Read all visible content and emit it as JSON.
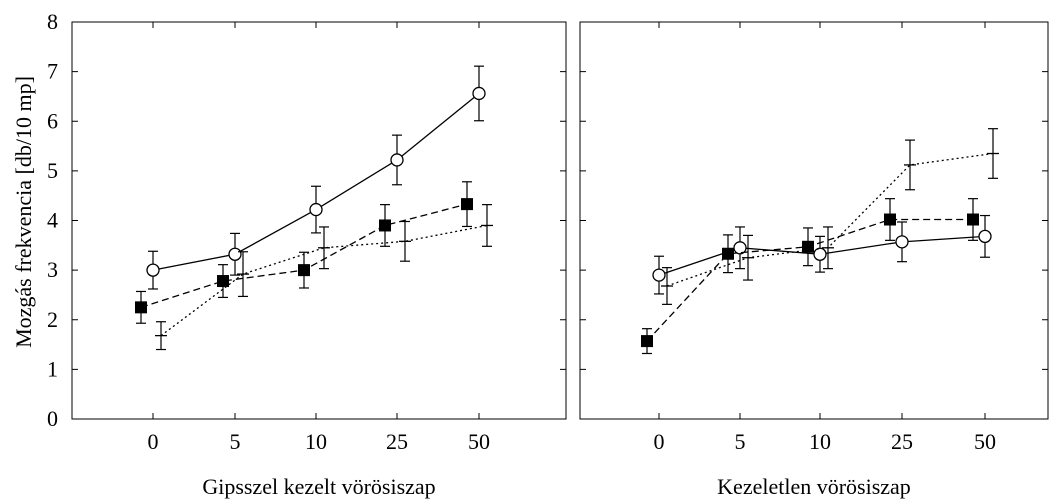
{
  "y_axis_label": "Mozgás frekvencia [db/10 mp]",
  "chart_data": [
    {
      "type": "line",
      "xlabel": "Gipsszel kezelt vörösiszap",
      "ylabel": "Mozgás frekvencia [db/10 mp]",
      "categories": [
        "0",
        "5",
        "10",
        "25",
        "50"
      ],
      "ylim": [
        0,
        8
      ],
      "yticks": [
        "0",
        "1",
        "2",
        "3",
        "4",
        "5",
        "6",
        "7",
        "8"
      ],
      "grid": false,
      "series": [
        {
          "style": "solid-open-circle",
          "values": [
            3.0,
            3.32,
            4.22,
            5.22,
            6.56
          ],
          "errors": [
            0.38,
            0.42,
            0.47,
            0.5,
            0.55
          ]
        },
        {
          "style": "dashed-filled-square",
          "values": [
            2.25,
            2.78,
            3.0,
            3.9,
            4.33
          ],
          "errors": [
            0.32,
            0.33,
            0.36,
            0.42,
            0.45
          ]
        },
        {
          "style": "dotted-plus",
          "values": [
            1.68,
            2.92,
            3.45,
            3.58,
            3.9
          ],
          "errors": [
            0.28,
            0.45,
            0.42,
            0.4,
            0.42
          ]
        }
      ]
    },
    {
      "type": "line",
      "xlabel": "Kezeletlen vörösiszap",
      "ylabel": "",
      "categories": [
        "0",
        "5",
        "10",
        "25",
        "50"
      ],
      "ylim": [
        0,
        8
      ],
      "grid": false,
      "series": [
        {
          "style": "solid-open-circle",
          "values": [
            2.9,
            3.45,
            3.32,
            3.57,
            3.68
          ],
          "errors": [
            0.38,
            0.42,
            0.36,
            0.4,
            0.42
          ]
        },
        {
          "style": "dashed-filled-square",
          "values": [
            1.57,
            3.33,
            3.47,
            4.02,
            4.02
          ],
          "errors": [
            0.25,
            0.38,
            0.38,
            0.42,
            0.42
          ]
        },
        {
          "style": "dotted-plus",
          "values": [
            2.68,
            3.25,
            3.45,
            5.12,
            5.35
          ],
          "errors": [
            0.37,
            0.45,
            0.42,
            0.5,
            0.5
          ]
        }
      ]
    }
  ]
}
